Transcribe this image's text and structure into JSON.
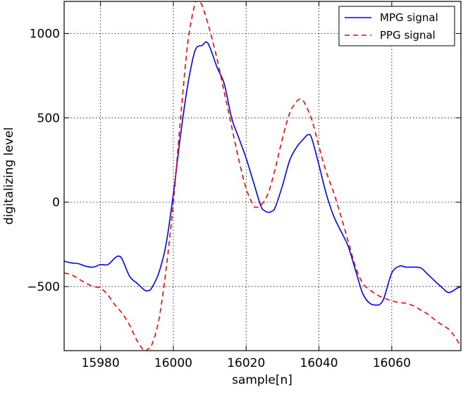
{
  "chart_data": {
    "type": "line",
    "xlabel": "sample[n]",
    "ylabel": "digitalizing level",
    "xlim": [
      15970,
      16079
    ],
    "ylim": [
      -880,
      1190
    ],
    "x_ticks": [
      15980,
      16000,
      16020,
      16040,
      16060
    ],
    "y_ticks": [
      -500,
      0,
      500,
      1000
    ],
    "x_tick_labels": [
      "15980",
      "16000",
      "16020",
      "16040",
      "16060"
    ],
    "y_tick_labels": [
      "−500",
      "0",
      "500",
      "1000"
    ],
    "grid": true,
    "legend_position": "top-right",
    "series": [
      {
        "name": "MPG signal",
        "color": "#0000ff",
        "dash": "solid",
        "x": [
          15970,
          15972,
          15974,
          15976,
          15978,
          15980,
          15982,
          15984,
          15985,
          15986,
          15988,
          15990,
          15992,
          15993,
          15994,
          15996,
          15998,
          16000,
          16002,
          16004,
          16006,
          16008,
          16009,
          16010,
          16012,
          16014,
          16016,
          16018,
          16020,
          16022,
          16024,
          16025,
          16026,
          16027,
          16028,
          16030,
          16032,
          16034,
          16036,
          16037,
          16038,
          16040,
          16042,
          16044,
          16046,
          16048,
          16050,
          16052,
          16054,
          16056,
          16057,
          16058,
          16060,
          16062,
          16063,
          16064,
          16066,
          16068,
          16070,
          16072,
          16074,
          16075,
          16076,
          16078,
          16079
        ],
        "y": [
          -350,
          -360,
          -365,
          -380,
          -385,
          -370,
          -370,
          -330,
          -320,
          -340,
          -440,
          -480,
          -520,
          -525,
          -510,
          -420,
          -250,
          50,
          400,
          700,
          900,
          930,
          950,
          920,
          800,
          700,
          500,
          380,
          260,
          120,
          -20,
          -50,
          -60,
          -55,
          -30,
          100,
          250,
          330,
          380,
          400,
          380,
          220,
          50,
          -80,
          -170,
          -260,
          -400,
          -540,
          -600,
          -610,
          -600,
          -560,
          -420,
          -380,
          -380,
          -385,
          -385,
          -390,
          -430,
          -470,
          -510,
          -530,
          -535,
          -510,
          -500
        ]
      },
      {
        "name": "PPG signal",
        "color": "#ff0000",
        "dash": "dashed",
        "x": [
          15970,
          15972,
          15974,
          15976,
          15978,
          15980,
          15982,
          15984,
          15986,
          15988,
          15990,
          15992,
          15993,
          15994,
          15996,
          15998,
          16000,
          16002,
          16004,
          16006,
          16007,
          16008,
          16010,
          16012,
          16014,
          16016,
          16018,
          16020,
          16022,
          16023,
          16024,
          16026,
          16028,
          16030,
          16032,
          16034,
          16035,
          16036,
          16038,
          16040,
          16042,
          16044,
          16046,
          16048,
          16050,
          16052,
          16054,
          16056,
          16058,
          16060,
          16062,
          16064,
          16066,
          16068,
          16070,
          16072,
          16074,
          16076,
          16078,
          16079
        ],
        "y": [
          -420,
          -430,
          -455,
          -480,
          -500,
          -510,
          -550,
          -610,
          -660,
          -730,
          -820,
          -880,
          -870,
          -850,
          -700,
          -400,
          0,
          500,
          950,
          1180,
          1190,
          1160,
          1020,
          850,
          650,
          450,
          250,
          80,
          -20,
          -30,
          -20,
          50,
          200,
          380,
          530,
          600,
          610,
          590,
          490,
          330,
          180,
          60,
          -80,
          -230,
          -380,
          -480,
          -520,
          -550,
          -570,
          -585,
          -595,
          -600,
          -615,
          -640,
          -665,
          -700,
          -730,
          -760,
          -820,
          -860
        ]
      }
    ]
  }
}
